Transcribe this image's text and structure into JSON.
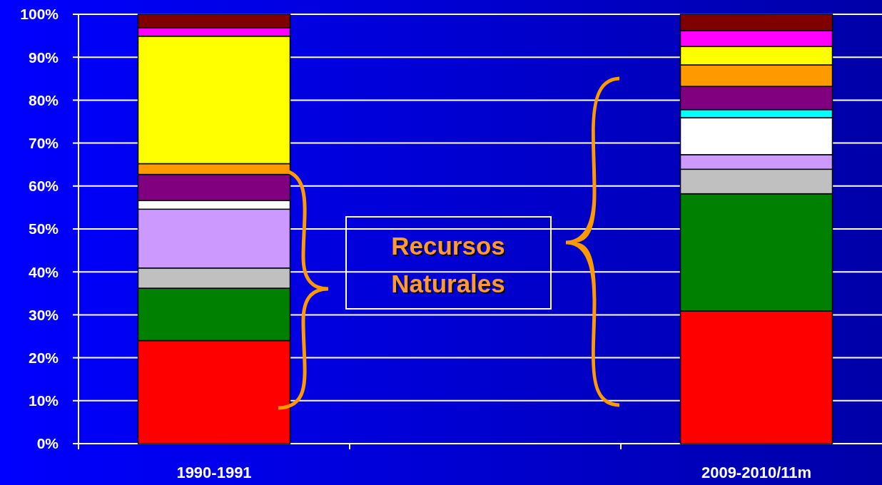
{
  "chart_data": {
    "type": "bar",
    "stacked": true,
    "categories": [
      "1990-1991",
      "2009-2010/11m"
    ],
    "series": [
      {
        "color": "#ff0000",
        "values": [
          24.0,
          30.9
        ]
      },
      {
        "color": "#008000",
        "values": [
          12.2,
          27.3
        ]
      },
      {
        "color": "#c0c0c0",
        "values": [
          4.7,
          5.7
        ]
      },
      {
        "color": "#cc99ff",
        "values": [
          13.7,
          3.4
        ]
      },
      {
        "color": "#ffffff",
        "values": [
          2.0,
          8.6
        ]
      },
      {
        "color": "#00ffff",
        "values": [
          0,
          1.9
        ]
      },
      {
        "color": "#800080",
        "values": [
          6.1,
          5.4
        ]
      },
      {
        "color": "#ff9900",
        "values": [
          2.5,
          5.0
        ]
      },
      {
        "color": "#ffff00",
        "values": [
          29.7,
          4.3
        ]
      },
      {
        "color": "#ff00ff",
        "values": [
          1.9,
          3.7
        ]
      },
      {
        "color": "#800000",
        "values": [
          3.2,
          3.8
        ]
      }
    ],
    "ylim": [
      0,
      100
    ],
    "yticks": [
      {
        "value": 0,
        "label": "0%"
      },
      {
        "value": 10,
        "label": "10%"
      },
      {
        "value": 20,
        "label": "20%"
      },
      {
        "value": 30,
        "label": "30%"
      },
      {
        "value": 40,
        "label": "40%"
      },
      {
        "value": 50,
        "label": "50%"
      },
      {
        "value": 60,
        "label": "60%"
      },
      {
        "value": 70,
        "label": "70%"
      },
      {
        "value": 80,
        "label": "80%"
      },
      {
        "value": 90,
        "label": "90%"
      },
      {
        "value": 100,
        "label": "100%"
      }
    ],
    "grid": "y",
    "annotations": [
      "Recursos Naturales"
    ]
  }
}
